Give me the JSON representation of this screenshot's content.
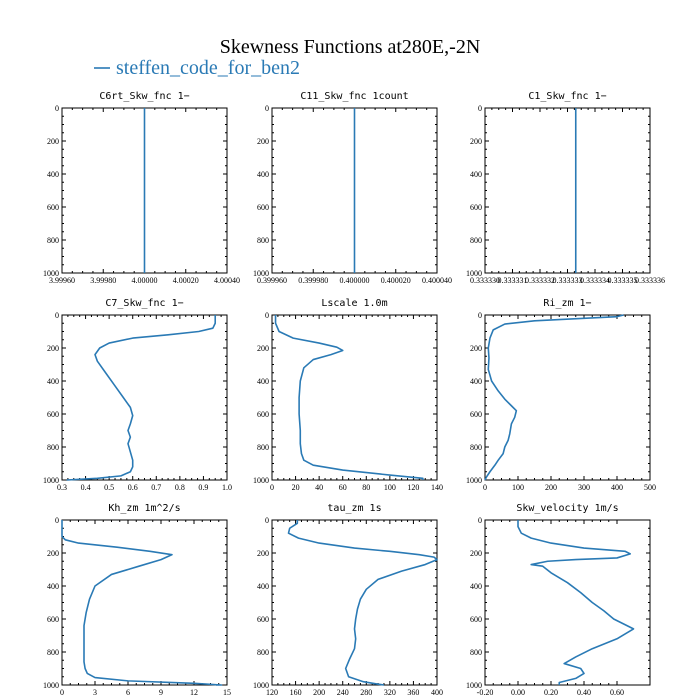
{
  "figure": {
    "title": "Skewness Functions at280E,-2N",
    "legend_label": "steffen_code_for_ben2",
    "series_color": "#2a7ab5"
  },
  "chart_data": [
    {
      "type": "line",
      "title": "C6rt_Skw_fnc   1−",
      "xlim": [
        3.9996,
        4.0004
      ],
      "ylim": [
        0,
        1000
      ],
      "y_inverted": true,
      "xticks": [
        "3.99960",
        "3.99980",
        "4.00000",
        "4.00020",
        "4.00040"
      ],
      "xtick_values": [
        3.9996,
        3.9998,
        4.0,
        4.0002,
        4.0004
      ],
      "yticks": [
        "0",
        "200",
        "400",
        "600",
        "800",
        "1000"
      ],
      "series": [
        {
          "x": [
            4.0,
            4.0
          ],
          "y": [
            0,
            1000
          ]
        }
      ]
    },
    {
      "type": "line",
      "title": "C11_Skw_fnc   1count",
      "xlim": [
        0.39996,
        0.40004
      ],
      "ylim": [
        0,
        1000
      ],
      "y_inverted": true,
      "xticks": [
        "0.399960",
        "0.399980",
        "0.400000",
        "0.400020",
        "0.400040"
      ],
      "xtick_values": [
        0.39996,
        0.39998,
        0.4,
        0.40002,
        0.40004
      ],
      "yticks": [
        "0",
        "200",
        "400",
        "600",
        "800",
        "1000"
      ],
      "series": [
        {
          "x": [
            0.4,
            0.4
          ],
          "y": [
            0,
            1000
          ]
        }
      ]
    },
    {
      "type": "line",
      "title": "C1_Skw_fnc   1−",
      "xlim": [
        0.33333,
        0.333336
      ],
      "ylim": [
        0,
        1000
      ],
      "y_inverted": true,
      "xticks": [
        "0.333330",
        "0.333331",
        "0.333332",
        "0.333333",
        "0.333334",
        "0.333335",
        "0.333336"
      ],
      "xtick_values": [
        0.33333,
        0.333331,
        0.333332,
        0.333333,
        0.333334,
        0.333335,
        0.333336
      ],
      "yticks": [
        "0",
        "200",
        "400",
        "600",
        "800",
        "1000"
      ],
      "series": [
        {
          "x": [
            0.3333333,
            0.3333333
          ],
          "y": [
            0,
            1000
          ]
        }
      ]
    },
    {
      "type": "line",
      "title": "C7_Skw_fnc   1−",
      "xlim": [
        0.3,
        1.0
      ],
      "ylim": [
        0,
        1000
      ],
      "y_inverted": true,
      "xticks": [
        "0.3",
        "0.4",
        "0.5",
        "0.6",
        "0.7",
        "0.8",
        "0.9",
        "1.0"
      ],
      "xtick_values": [
        0.3,
        0.4,
        0.5,
        0.6,
        0.7,
        0.8,
        0.9,
        1.0
      ],
      "yticks": [
        "0",
        "200",
        "400",
        "600",
        "800",
        "1000"
      ],
      "series": [
        {
          "x": [
            0.95,
            0.95,
            0.94,
            0.88,
            0.75,
            0.6,
            0.5,
            0.46,
            0.44,
            0.45,
            0.48,
            0.52,
            0.56,
            0.59,
            0.6,
            0.59,
            0.58,
            0.59,
            0.58,
            0.59,
            0.6,
            0.6,
            0.59,
            0.55,
            0.45,
            0.32
          ],
          "y": [
            0,
            50,
            80,
            100,
            120,
            140,
            170,
            200,
            240,
            280,
            340,
            420,
            500,
            560,
            610,
            660,
            700,
            740,
            780,
            830,
            880,
            920,
            950,
            975,
            990,
            1000
          ]
        }
      ]
    },
    {
      "type": "line",
      "title": "Lscale   1.0m",
      "xlim": [
        0,
        140
      ],
      "ylim": [
        0,
        1000
      ],
      "y_inverted": true,
      "xticks": [
        "0",
        "20",
        "40",
        "60",
        "80",
        "100",
        "120",
        "140"
      ],
      "xtick_values": [
        0,
        20,
        40,
        60,
        80,
        100,
        120,
        140
      ],
      "yticks": [
        "0",
        "200",
        "400",
        "600",
        "800",
        "1000"
      ],
      "series": [
        {
          "x": [
            3,
            3,
            6,
            18,
            40,
            55,
            60,
            50,
            35,
            27,
            24,
            23,
            23,
            24,
            24,
            25,
            27,
            35,
            60,
            100,
            128,
            128
          ],
          "y": [
            0,
            50,
            100,
            140,
            170,
            195,
            215,
            240,
            270,
            320,
            400,
            500,
            600,
            700,
            780,
            840,
            880,
            910,
            940,
            970,
            990,
            1000
          ]
        }
      ]
    },
    {
      "type": "line",
      "title": "Ri_zm   1−",
      "xlim": [
        0,
        500
      ],
      "ylim": [
        0,
        1000
      ],
      "y_inverted": true,
      "xticks": [
        "0",
        "100",
        "200",
        "300",
        "400",
        "500"
      ],
      "xtick_values": [
        0,
        100,
        200,
        300,
        400,
        500
      ],
      "yticks": [
        "0",
        "200",
        "400",
        "600",
        "800",
        "1000"
      ],
      "series": [
        {
          "x": [
            420,
            400,
            300,
            150,
            60,
            25,
            15,
            10,
            12,
            10,
            20,
            40,
            60,
            80,
            95,
            90,
            80,
            75,
            70,
            60,
            55,
            40,
            30,
            15,
            5,
            0
          ],
          "y": [
            0,
            10,
            20,
            35,
            55,
            90,
            140,
            200,
            260,
            330,
            400,
            460,
            510,
            550,
            580,
            620,
            660,
            720,
            760,
            800,
            840,
            880,
            910,
            950,
            980,
            1000
          ]
        }
      ]
    },
    {
      "type": "line",
      "title": "Kh_zm   1m^2/s",
      "xlim": [
        0,
        15
      ],
      "ylim": [
        0,
        1000
      ],
      "y_inverted": true,
      "xticks": [
        "0",
        "3",
        "6",
        "9",
        "12",
        "15"
      ],
      "xtick_values": [
        0,
        3,
        6,
        9,
        12,
        15
      ],
      "yticks": [
        "0",
        "200",
        "400",
        "600",
        "800",
        "1000"
      ],
      "series": [
        {
          "x": [
            0,
            0,
            0.3,
            1.5,
            5,
            8,
            10,
            9,
            7,
            4.5,
            3,
            2.5,
            2.2,
            2.0,
            2.0,
            2.0,
            2.0,
            2.1,
            2.3,
            3,
            6,
            12,
            14.5,
            14
          ],
          "y": [
            0,
            100,
            120,
            140,
            165,
            190,
            210,
            240,
            280,
            330,
            400,
            480,
            560,
            640,
            720,
            800,
            860,
            900,
            930,
            955,
            975,
            990,
            1000,
            1000
          ]
        }
      ]
    },
    {
      "type": "line",
      "title": "tau_zm   1s",
      "xlim": [
        120,
        400
      ],
      "ylim": [
        0,
        1000
      ],
      "y_inverted": true,
      "xticks": [
        "120",
        "160",
        "200",
        "240",
        "280",
        "320",
        "360",
        "400"
      ],
      "xtick_values": [
        120,
        160,
        200,
        240,
        280,
        320,
        360,
        400
      ],
      "yticks": [
        "0",
        "200",
        "400",
        "600",
        "800",
        "1000"
      ],
      "series": [
        {
          "x": [
            163,
            163,
            150,
            148,
            165,
            200,
            260,
            320,
            370,
            395,
            400,
            380,
            340,
            300,
            280,
            270,
            265,
            262,
            260,
            262,
            260,
            252,
            245,
            250,
            275,
            300,
            310
          ],
          "y": [
            0,
            20,
            50,
            80,
            110,
            140,
            170,
            190,
            210,
            225,
            240,
            270,
            310,
            360,
            420,
            480,
            540,
            600,
            660,
            720,
            780,
            840,
            900,
            950,
            980,
            995,
            1000
          ]
        }
      ]
    },
    {
      "type": "line",
      "title": "Skw_velocity   1m/s",
      "xlim": [
        -0.2,
        0.8
      ],
      "ylim": [
        0,
        1000
      ],
      "y_inverted": true,
      "xticks": [
        "-0.20",
        "0.00",
        "0.20",
        "0.40",
        "0.60"
      ],
      "xtick_values": [
        -0.2,
        0.0,
        0.2,
        0.4,
        0.6
      ],
      "yticks": [
        "0",
        "200",
        "400",
        "600",
        "800",
        "1000"
      ],
      "series": [
        {
          "x": [
            0.0,
            0.0,
            0.02,
            0.08,
            0.2,
            0.4,
            0.65,
            0.68,
            0.6,
            0.35,
            0.18,
            0.08,
            0.15,
            0.2,
            0.3,
            0.38,
            0.45,
            0.52,
            0.58,
            0.7,
            0.6,
            0.45,
            0.35,
            0.28,
            0.38,
            0.4,
            0.35,
            0.25,
            0.25
          ],
          "y": [
            0,
            40,
            80,
            110,
            140,
            170,
            190,
            205,
            230,
            240,
            250,
            270,
            280,
            320,
            380,
            440,
            500,
            550,
            600,
            660,
            720,
            780,
            830,
            870,
            900,
            930,
            960,
            985,
            1000
          ]
        }
      ]
    }
  ]
}
